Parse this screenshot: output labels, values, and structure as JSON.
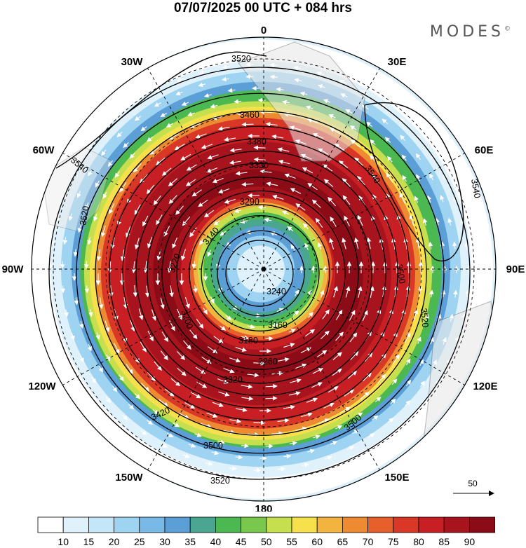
{
  "title": "07/07/2025  00 UTC  + 084 hrs",
  "brand": "MODES",
  "longitude_labels": [
    "0",
    "30E",
    "60E",
    "90E",
    "120E",
    "150E",
    "180",
    "150W",
    "120W",
    "90W",
    "60W",
    "30W"
  ],
  "contour_labels": [
    "3520",
    "3500",
    "3460",
    "3420",
    "3380",
    "3330",
    "3290",
    "3240",
    "3180",
    "3160",
    "3140",
    "3200",
    "3220",
    "3260",
    "3320",
    "3540",
    "3540",
    "3520",
    "3500",
    "3520",
    "3540",
    "3500",
    "3520"
  ],
  "vector_reference": "50",
  "colorbar": {
    "ticks": [
      "10",
      "15",
      "20",
      "25",
      "30",
      "35",
      "40",
      "45",
      "50",
      "55",
      "60",
      "65",
      "70",
      "75",
      "80",
      "85",
      "90"
    ],
    "colors": [
      "#ffffff",
      "#dff1fb",
      "#c3e6f8",
      "#9fd3f2",
      "#79b9e6",
      "#5b9fd6",
      "#4aa690",
      "#4cb852",
      "#79c74c",
      "#c6df4f",
      "#f6e04c",
      "#f3b43f",
      "#ee8a32",
      "#e7602b",
      "#d93826",
      "#c81f24",
      "#a8141d",
      "#8b0c16"
    ]
  },
  "ring_colors": [
    "#ffffff",
    "#dff1fb",
    "#9fd3f2",
    "#5b9fd6",
    "#4cb852",
    "#c6df4f",
    "#f6e04c",
    "#ee8a32",
    "#d93826",
    "#c81f24",
    "#a8141d",
    "#8b0c16",
    "#a8141d",
    "#c81f24",
    "#e7602b",
    "#f3b43f",
    "#c6df4f",
    "#4cb852",
    "#4aa690",
    "#5b9fd6",
    "#9fd3f2",
    "#dff1fb"
  ]
}
